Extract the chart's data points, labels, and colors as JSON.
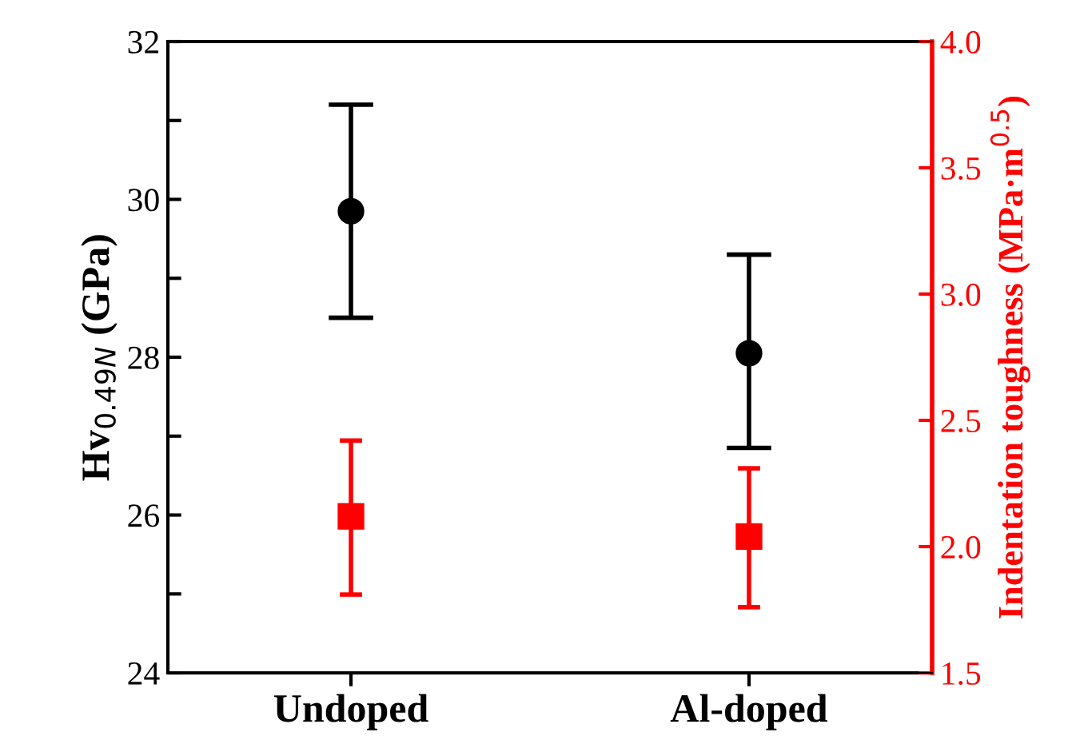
{
  "chart_data": {
    "type": "scatter",
    "categories": [
      "Undoped",
      "Al-doped"
    ],
    "ylabel": "Hv$_{0.49N}$ (GPa)",
    "y2label": "Indentation toughness (MPa·m$^{0.5}$)",
    "ylim": [
      24,
      32
    ],
    "yticks": [
      24,
      {
        "value": 25,
        "label": null
      },
      26,
      {
        "value": 27,
        "label": null
      },
      28,
      {
        "value": 29,
        "label": null
      },
      30,
      {
        "value": 31,
        "label": null
      },
      32
    ],
    "y2lim": [
      1.5,
      4.0
    ],
    "y2ticks": [
      {
        "value": 1.5,
        "label": "1.5"
      },
      {
        "value": 2.0,
        "label": "2.0"
      },
      {
        "value": 2.5,
        "label": "2.5"
      },
      {
        "value": 3.0,
        "label": "3.0"
      },
      {
        "value": 3.5,
        "label": "3.5"
      },
      {
        "value": 4.0,
        "label": "4.0"
      }
    ],
    "series": [
      {
        "color": "#000000",
        "marker": "circle",
        "values": [
          29.85,
          28.05
        ],
        "errors": [
          [
            28.5,
            31.2
          ],
          [
            26.85,
            29.3
          ]
        ]
      },
      {
        "color": "#ff0000",
        "marker": "square",
        "axis": "y2",
        "values": [
          2.12,
          2.04
        ],
        "errors": [
          [
            1.81,
            2.42
          ],
          [
            1.76,
            2.31
          ]
        ]
      }
    ],
    "grid": false,
    "legend": false
  }
}
